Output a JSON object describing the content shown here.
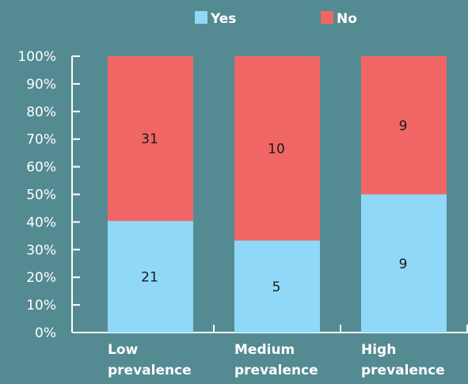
{
  "chart_data": {
    "type": "bar",
    "stacked": true,
    "normalized": true,
    "categories": [
      [
        "Low",
        "prevalence"
      ],
      [
        "Medium",
        "prevalence"
      ],
      [
        "High",
        "prevalence"
      ]
    ],
    "series": [
      {
        "name": "Yes",
        "values": [
          21,
          5,
          9
        ],
        "color": "#8fd8f7"
      },
      {
        "name": "No",
        "values": [
          31,
          10,
          9
        ],
        "color": "#f06665"
      }
    ],
    "title": "",
    "xlabel": "",
    "ylabel": "",
    "ylim": [
      0,
      100
    ],
    "yticks": [
      "0%",
      "10%",
      "20%",
      "30%",
      "40%",
      "50%",
      "60%",
      "70%",
      "80%",
      "90%",
      "100%"
    ],
    "legend": {
      "position": "top-center"
    },
    "grid": false
  }
}
